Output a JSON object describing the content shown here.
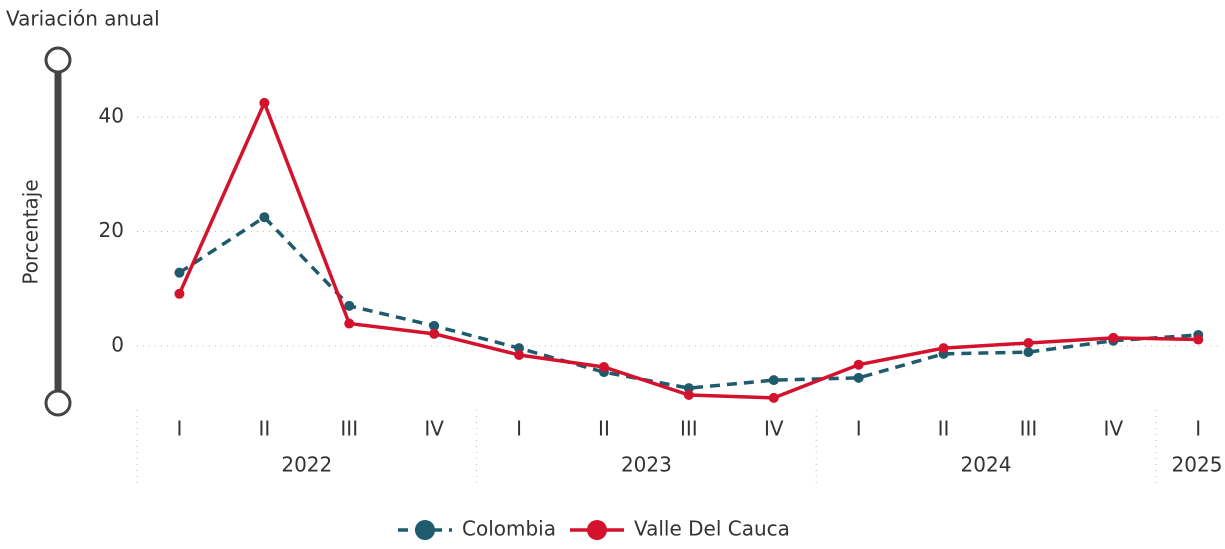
{
  "chart_data": {
    "type": "line",
    "title": "Variación anual",
    "y_label": "Porcentaje",
    "category_groups": [
      {
        "label": "2022",
        "categories": [
          "I",
          "II",
          "III",
          "IV"
        ]
      },
      {
        "label": "2023",
        "categories": [
          "I",
          "II",
          "III",
          "IV"
        ]
      },
      {
        "label": "2024",
        "categories": [
          "I",
          "II",
          "III",
          "IV"
        ]
      },
      {
        "label": "2025",
        "categories": [
          "I"
        ]
      }
    ],
    "series": [
      {
        "name": "Colombia",
        "color": "#1f5b6c",
        "line_style": "dashed",
        "values": [
          12.8,
          22.5,
          7.0,
          3.5,
          -0.4,
          -4.6,
          -7.4,
          -6.0,
          -5.6,
          -1.4,
          -1.1,
          0.9,
          1.9
        ]
      },
      {
        "name": "Valle Del Cauca",
        "color": "#d3132d",
        "line_style": "solid",
        "values": [
          9.1,
          42.5,
          3.9,
          2.1,
          -1.6,
          -3.7,
          -8.6,
          -9.1,
          -3.3,
          -0.4,
          0.5,
          1.4,
          1.1
        ]
      }
    ],
    "ylim": [
      -10,
      50
    ],
    "yticks": [
      0,
      20,
      40
    ],
    "grid": true,
    "legend": "bottom"
  }
}
